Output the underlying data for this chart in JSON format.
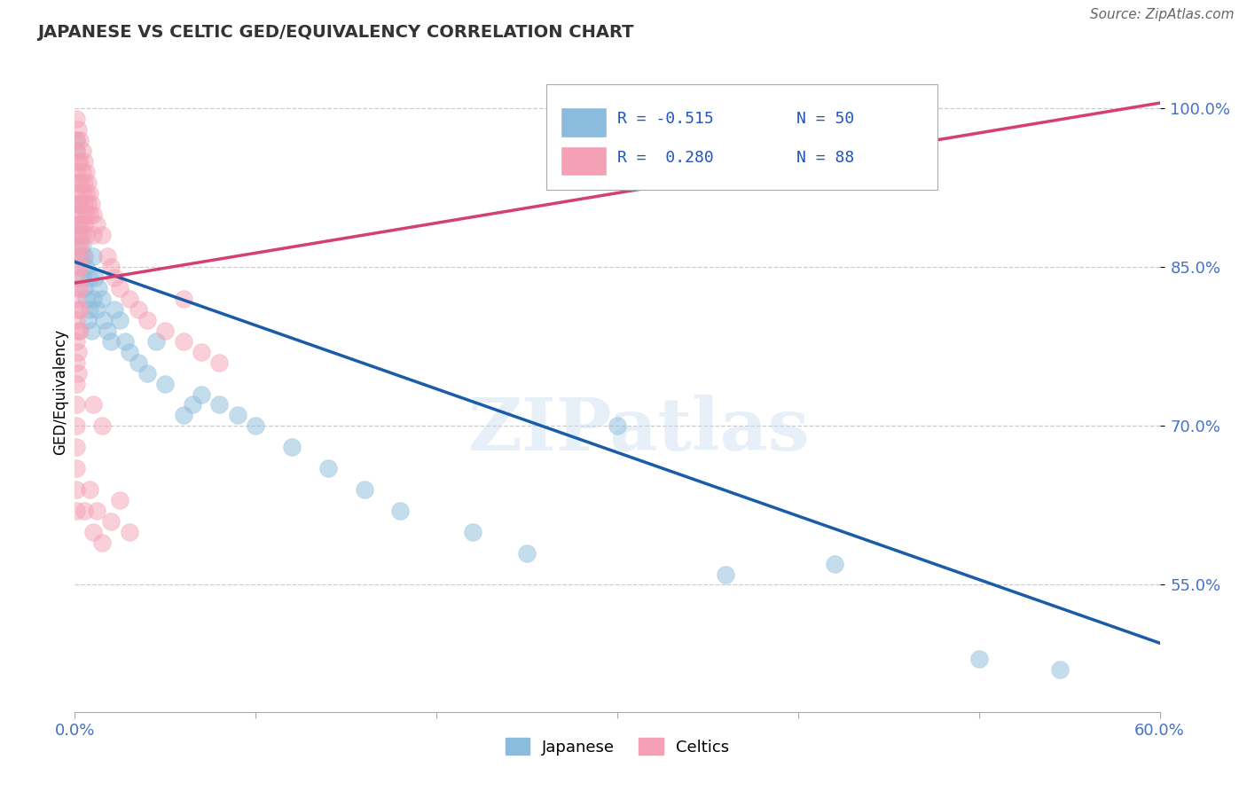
{
  "title": "JAPANESE VS CELTIC GED/EQUIVALENCY CORRELATION CHART",
  "source": "Source: ZipAtlas.com",
  "ylabel": "GED/Equivalency",
  "xmin": 0.0,
  "xmax": 0.6,
  "ymin": 0.43,
  "ymax": 1.035,
  "yticks": [
    1.0,
    0.85,
    0.7,
    0.55
  ],
  "ytick_labels": [
    "100.0%",
    "85.0%",
    "70.0%",
    "55.0%"
  ],
  "watermark": "ZIPatlas",
  "legend_r_japanese": "R = -0.515",
  "legend_n_japanese": "N = 50",
  "legend_r_celtic": "R =  0.280",
  "legend_n_celtic": "N = 88",
  "japanese_color": "#8bbcdd",
  "celtic_color": "#f4a0b5",
  "japanese_line_color": "#1a5ca8",
  "celtic_line_color": "#d44070",
  "jp_line_x0": 0.0,
  "jp_line_y0": 0.855,
  "jp_line_x1": 0.6,
  "jp_line_y1": 0.495,
  "ce_line_x0": 0.0,
  "ce_line_y0": 0.835,
  "ce_line_x1": 0.6,
  "ce_line_y1": 1.005,
  "japanese_points": [
    [
      0.001,
      0.97
    ],
    [
      0.001,
      0.96
    ],
    [
      0.002,
      0.91
    ],
    [
      0.002,
      0.89
    ],
    [
      0.003,
      0.86
    ],
    [
      0.003,
      0.88
    ],
    [
      0.004,
      0.87
    ],
    [
      0.004,
      0.84
    ],
    [
      0.005,
      0.83
    ],
    [
      0.005,
      0.86
    ],
    [
      0.006,
      0.85
    ],
    [
      0.006,
      0.82
    ],
    [
      0.007,
      0.8
    ],
    [
      0.008,
      0.84
    ],
    [
      0.008,
      0.81
    ],
    [
      0.009,
      0.79
    ],
    [
      0.01,
      0.82
    ],
    [
      0.01,
      0.86
    ],
    [
      0.011,
      0.84
    ],
    [
      0.012,
      0.81
    ],
    [
      0.013,
      0.83
    ],
    [
      0.015,
      0.82
    ],
    [
      0.016,
      0.8
    ],
    [
      0.018,
      0.79
    ],
    [
      0.02,
      0.78
    ],
    [
      0.022,
      0.81
    ],
    [
      0.025,
      0.8
    ],
    [
      0.028,
      0.78
    ],
    [
      0.03,
      0.77
    ],
    [
      0.035,
      0.76
    ],
    [
      0.04,
      0.75
    ],
    [
      0.045,
      0.78
    ],
    [
      0.05,
      0.74
    ],
    [
      0.06,
      0.71
    ],
    [
      0.065,
      0.72
    ],
    [
      0.07,
      0.73
    ],
    [
      0.08,
      0.72
    ],
    [
      0.09,
      0.71
    ],
    [
      0.1,
      0.7
    ],
    [
      0.12,
      0.68
    ],
    [
      0.14,
      0.66
    ],
    [
      0.16,
      0.64
    ],
    [
      0.18,
      0.62
    ],
    [
      0.22,
      0.6
    ],
    [
      0.25,
      0.58
    ],
    [
      0.3,
      0.7
    ],
    [
      0.36,
      0.56
    ],
    [
      0.42,
      0.57
    ],
    [
      0.5,
      0.48
    ],
    [
      0.545,
      0.47
    ]
  ],
  "celtic_points": [
    [
      0.001,
      0.99
    ],
    [
      0.001,
      0.97
    ],
    [
      0.001,
      0.96
    ],
    [
      0.001,
      0.94
    ],
    [
      0.001,
      0.92
    ],
    [
      0.001,
      0.9
    ],
    [
      0.001,
      0.88
    ],
    [
      0.001,
      0.86
    ],
    [
      0.001,
      0.84
    ],
    [
      0.001,
      0.82
    ],
    [
      0.001,
      0.8
    ],
    [
      0.001,
      0.78
    ],
    [
      0.001,
      0.76
    ],
    [
      0.001,
      0.74
    ],
    [
      0.001,
      0.72
    ],
    [
      0.001,
      0.7
    ],
    [
      0.001,
      0.68
    ],
    [
      0.001,
      0.66
    ],
    [
      0.001,
      0.64
    ],
    [
      0.001,
      0.62
    ],
    [
      0.002,
      0.98
    ],
    [
      0.002,
      0.95
    ],
    [
      0.002,
      0.93
    ],
    [
      0.002,
      0.91
    ],
    [
      0.002,
      0.89
    ],
    [
      0.002,
      0.87
    ],
    [
      0.002,
      0.85
    ],
    [
      0.002,
      0.83
    ],
    [
      0.002,
      0.81
    ],
    [
      0.002,
      0.79
    ],
    [
      0.002,
      0.77
    ],
    [
      0.002,
      0.75
    ],
    [
      0.003,
      0.97
    ],
    [
      0.003,
      0.95
    ],
    [
      0.003,
      0.93
    ],
    [
      0.003,
      0.91
    ],
    [
      0.003,
      0.89
    ],
    [
      0.003,
      0.87
    ],
    [
      0.003,
      0.85
    ],
    [
      0.003,
      0.83
    ],
    [
      0.003,
      0.81
    ],
    [
      0.003,
      0.79
    ],
    [
      0.004,
      0.96
    ],
    [
      0.004,
      0.94
    ],
    [
      0.004,
      0.92
    ],
    [
      0.004,
      0.9
    ],
    [
      0.004,
      0.88
    ],
    [
      0.004,
      0.86
    ],
    [
      0.005,
      0.95
    ],
    [
      0.005,
      0.93
    ],
    [
      0.005,
      0.91
    ],
    [
      0.005,
      0.89
    ],
    [
      0.006,
      0.94
    ],
    [
      0.006,
      0.92
    ],
    [
      0.006,
      0.9
    ],
    [
      0.006,
      0.88
    ],
    [
      0.007,
      0.93
    ],
    [
      0.007,
      0.91
    ],
    [
      0.008,
      0.92
    ],
    [
      0.008,
      0.9
    ],
    [
      0.009,
      0.91
    ],
    [
      0.01,
      0.9
    ],
    [
      0.01,
      0.88
    ],
    [
      0.012,
      0.89
    ],
    [
      0.015,
      0.88
    ],
    [
      0.018,
      0.86
    ],
    [
      0.02,
      0.85
    ],
    [
      0.022,
      0.84
    ],
    [
      0.025,
      0.83
    ],
    [
      0.03,
      0.82
    ],
    [
      0.035,
      0.81
    ],
    [
      0.04,
      0.8
    ],
    [
      0.05,
      0.79
    ],
    [
      0.06,
      0.78
    ],
    [
      0.07,
      0.77
    ],
    [
      0.08,
      0.76
    ],
    [
      0.005,
      0.62
    ],
    [
      0.008,
      0.64
    ],
    [
      0.01,
      0.6
    ],
    [
      0.012,
      0.62
    ],
    [
      0.015,
      0.59
    ],
    [
      0.02,
      0.61
    ],
    [
      0.025,
      0.63
    ],
    [
      0.03,
      0.6
    ],
    [
      0.01,
      0.72
    ],
    [
      0.015,
      0.7
    ],
    [
      0.06,
      0.82
    ],
    [
      0.4,
      0.97
    ]
  ],
  "background_color": "#ffffff",
  "grid_color": "#cccccc"
}
